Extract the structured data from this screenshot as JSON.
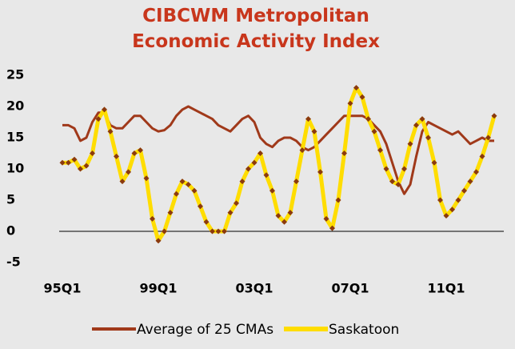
{
  "chart_data": {
    "type": "line",
    "title": "CIBCWM Metropolitan Economic Activity Index",
    "categories": [
      "95Q1",
      null,
      null,
      null,
      null,
      null,
      null,
      null,
      null,
      null,
      null,
      null,
      null,
      null,
      null,
      null,
      "99Q1",
      null,
      null,
      null,
      null,
      null,
      null,
      null,
      null,
      null,
      null,
      null,
      null,
      null,
      null,
      null,
      "03Q1",
      null,
      null,
      null,
      null,
      null,
      null,
      null,
      null,
      null,
      null,
      null,
      null,
      null,
      null,
      null,
      "07Q1",
      null,
      null,
      null,
      null,
      null,
      null,
      null,
      null,
      null,
      null,
      null,
      null,
      null,
      null,
      null,
      "11Q1",
      null,
      null,
      null,
      null,
      null,
      null,
      null,
      null
    ],
    "series": [
      {
        "name": "Average of 25 CMAs",
        "color": "#a0391a",
        "values": [
          17,
          17,
          16.5,
          14.5,
          15,
          17.5,
          19,
          19,
          17,
          16.5,
          16.5,
          17.5,
          18.5,
          18.5,
          17.5,
          16.5,
          16,
          16.2,
          17,
          18.5,
          19.5,
          20,
          19.5,
          19,
          18.5,
          18,
          17,
          16.5,
          16,
          17,
          18,
          18.5,
          17.5,
          15,
          14,
          13.5,
          14.5,
          15,
          15,
          14.5,
          13.5,
          13,
          13.5,
          14.5,
          15.5,
          16.5,
          17.5,
          18.5,
          18.5,
          18.5,
          18.5,
          18,
          17,
          16,
          14,
          11,
          8,
          6,
          7.5,
          12,
          16,
          17.5,
          17,
          16.5,
          16,
          15.5,
          16,
          15,
          14,
          14.5,
          15,
          14.5,
          14.5
        ]
      },
      {
        "name": "Saskatoon",
        "color": "#ffdd00",
        "marker_color": "#8b3a0e",
        "values": [
          11,
          11,
          11.5,
          10,
          10.5,
          12.5,
          18,
          19.5,
          16,
          12,
          8,
          9.5,
          12.5,
          13,
          8.5,
          2,
          -1.5,
          0,
          3,
          6,
          8,
          7.5,
          6.5,
          4,
          1.5,
          0,
          0,
          0,
          3,
          4.5,
          8,
          10,
          11,
          12.5,
          9,
          6.5,
          2.5,
          1.5,
          3,
          8,
          13,
          18,
          16,
          9.5,
          2,
          0.5,
          5,
          12.5,
          20.5,
          23,
          21.5,
          18,
          16,
          13,
          10,
          8,
          7.5,
          10,
          14,
          17,
          18,
          15,
          11,
          5,
          2.5,
          3.5,
          5,
          6.5,
          8,
          9.5,
          12,
          15,
          18.5
        ]
      }
    ],
    "ylim": [
      -5,
      25
    ],
    "yticks": [
      -5,
      0,
      5,
      10,
      15,
      20,
      25
    ],
    "grid": false
  }
}
